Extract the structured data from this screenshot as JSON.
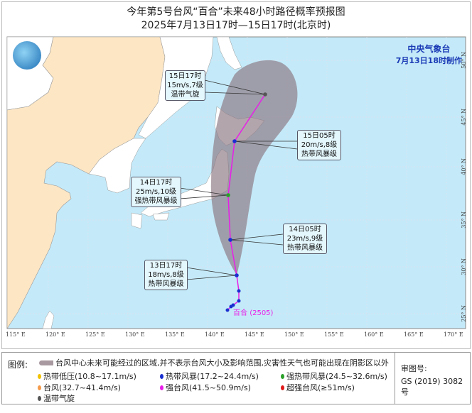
{
  "title": "今年第5号台风“百合”未来48小时路径概率预报图",
  "subtitle": "2025年7月13日17时—15日17时(北京时)",
  "issuer": {
    "name": "中央气象台",
    "made": "7月13日18时制作"
  },
  "typhoon": {
    "name": "百合",
    "code": "(2505)"
  },
  "colors": {
    "ocean": "#c4eaf9",
    "china": "#fde6c4",
    "other_land": "#ffffff",
    "cone": "#8a7580",
    "track": "#e81ee8"
  },
  "axes": {
    "lon": [
      "115° E",
      "120° E",
      "125° E",
      "130° E",
      "135° E",
      "140° E",
      "145° E",
      "150° E",
      "155° E",
      "160° E",
      "165° E",
      "170° E"
    ],
    "lat": [
      "50° N",
      "45° N",
      "40° N",
      "35° N",
      "30° N",
      "25° N"
    ]
  },
  "forecast_points": [
    {
      "time": "13日17时",
      "wind": "18m/s,8级",
      "level": "热带风暴级",
      "color": "#1a2fd0"
    },
    {
      "time": "14日05时",
      "wind": "23m/s,9级",
      "level": "热带风暴级",
      "color": "#1a2fd0"
    },
    {
      "time": "14日17时",
      "wind": "25m/s,10级",
      "level": "强热带风暴级",
      "color": "#2aa02a"
    },
    {
      "time": "15日05时",
      "wind": "20m/s,8级",
      "level": "热带风暴级",
      "color": "#1a2fd0"
    },
    {
      "time": "15日17时",
      "wind": "15m/s,7级",
      "level": "温带气旋",
      "color": "#555555"
    }
  ],
  "legend": {
    "title": "图例:",
    "cone_text": "台风中心未来可能经过的区域,并不表示台风大小及影响范围,灾害性天气也可能出现在阴影区以外",
    "items": [
      {
        "label": "热带低压(10.8~17.1m/s)",
        "color": "#f2c200"
      },
      {
        "label": "热带风暴(17.2~24.4m/s)",
        "color": "#1a2fd0"
      },
      {
        "label": "强热带风暴(24.5~32.6m/s)",
        "color": "#2aa02a"
      },
      {
        "label": "台风(32.7~41.4m/s)",
        "color": "#f59a4a"
      },
      {
        "label": "强台风(41.5~50.9m/s)",
        "color": "#e81ee8"
      },
      {
        "label": "超强台风(≥51m/s)",
        "color": "#e01818"
      },
      {
        "label": "温带气旋",
        "color": "#555555"
      }
    ],
    "approval_label": "审图号:",
    "approval_no": "GS (2019) 3082号"
  }
}
